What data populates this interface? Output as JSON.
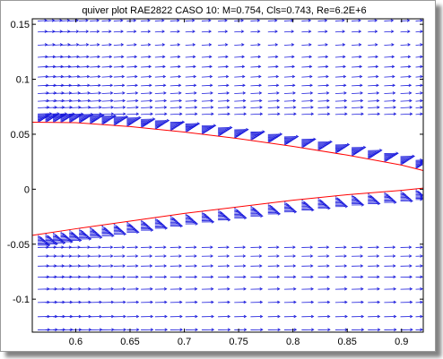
{
  "chart_data": {
    "type": "quiver",
    "title": "quiver plot RAE2822 CASO 10: M=0.754, Cls=0.743, Re=6.2E+6",
    "xlabel": "",
    "ylabel": "",
    "xlim": [
      0.56,
      0.92
    ],
    "ylim": [
      -0.13,
      0.155
    ],
    "xticks": [
      0.6,
      0.65,
      0.7,
      0.75,
      0.8,
      0.85,
      0.9
    ],
    "xtick_labels": [
      "0.6",
      "0.65",
      "0.7",
      "0.75",
      "0.8",
      "0.85",
      "0.9"
    ],
    "yticks": [
      -0.1,
      -0.05,
      0,
      0.05,
      0.1,
      0.15
    ],
    "ytick_labels": [
      "-0.1",
      "-0.05",
      "0",
      "0.05",
      "0.1",
      "0.15"
    ],
    "grid": false,
    "legend": "none",
    "arrow_color": "#1a1adc",
    "surface_color": "#ff0000",
    "upper_surface": {
      "x": [
        0.56,
        0.6,
        0.65,
        0.7,
        0.75,
        0.8,
        0.85,
        0.9,
        0.92
      ],
      "y": [
        0.061,
        0.0605,
        0.057,
        0.052,
        0.046,
        0.039,
        0.031,
        0.022,
        0.017
      ]
    },
    "lower_surface": {
      "x": [
        0.56,
        0.6,
        0.65,
        0.7,
        0.75,
        0.8,
        0.85,
        0.9,
        0.92
      ],
      "y": [
        -0.042,
        -0.036,
        -0.029,
        -0.022,
        -0.016,
        -0.01,
        -0.005,
        -0.001,
        0.001
      ]
    },
    "field_columns_x": [
      0.565,
      0.572,
      0.579,
      0.586,
      0.594,
      0.603,
      0.613,
      0.624,
      0.635,
      0.647,
      0.66,
      0.673,
      0.687,
      0.701,
      0.716,
      0.731,
      0.746,
      0.761,
      0.777,
      0.792,
      0.808,
      0.823,
      0.839,
      0.854,
      0.869,
      0.884,
      0.899,
      0.913
    ],
    "outer_rows_y_upper": [
      0.068,
      0.074,
      0.08,
      0.087,
      0.094,
      0.102,
      0.111,
      0.12,
      0.131,
      0.143,
      0.153
    ],
    "outer_rows_y_lower": [
      -0.053,
      -0.061,
      -0.07,
      -0.08,
      -0.091,
      -0.103,
      -0.116,
      -0.128
    ]
  }
}
